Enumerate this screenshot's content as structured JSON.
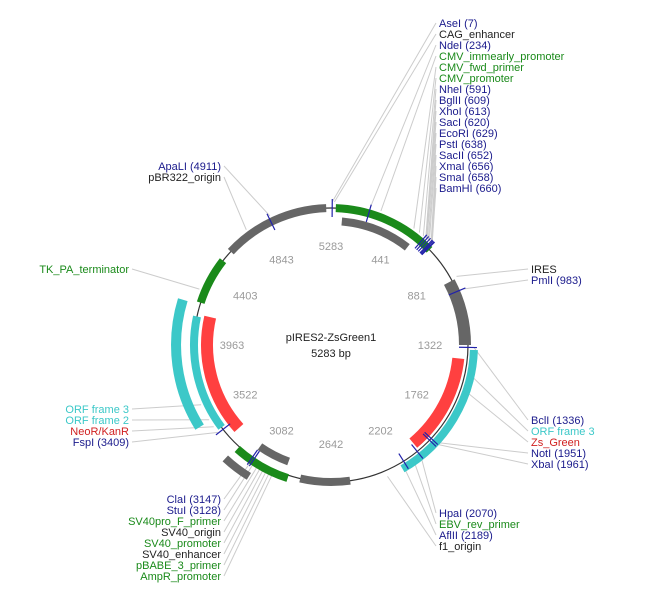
{
  "plasmid": {
    "name": "pIRES2-ZsGreen1",
    "size_label": "5283 bp",
    "total_bp": 5283
  },
  "colors": {
    "enzyme": "#1a1a8c",
    "green_feature": "#1a8a1a",
    "cyan_feature": "#3cc8c8",
    "red_feature": "#ff4040",
    "gray_feature": "#666666",
    "black_text": "#222222",
    "backbone": "#333333"
  },
  "ticks": [
    "5283",
    "441",
    "881",
    "1322",
    "1762",
    "2202",
    "2642",
    "3082",
    "3522",
    "3963",
    "4403",
    "4843"
  ],
  "labels_top_right": [
    {
      "text": "AseI (7)",
      "kind": "enzyme",
      "pos": 7
    },
    {
      "text": "CAG_enhancer",
      "kind": "misc",
      "pos": 20
    },
    {
      "text": "NdeI (234)",
      "kind": "enzyme",
      "pos": 234
    },
    {
      "text": "CMV_immearly_promoter",
      "kind": "feature",
      "pos": 300
    },
    {
      "text": "CMV_fwd_primer",
      "kind": "feature",
      "pos": 520
    },
    {
      "text": "CMV_promoter",
      "kind": "feature",
      "pos": 560
    },
    {
      "text": "NheI (591)",
      "kind": "enzyme",
      "pos": 591
    },
    {
      "text": "BglII (609)",
      "kind": "enzyme",
      "pos": 609
    },
    {
      "text": "XhoI (613)",
      "kind": "enzyme",
      "pos": 613
    },
    {
      "text": "SacI (620)",
      "kind": "enzyme",
      "pos": 620
    },
    {
      "text": "EcoRI (629)",
      "kind": "enzyme",
      "pos": 629
    },
    {
      "text": "PstI (638)",
      "kind": "enzyme",
      "pos": 638
    },
    {
      "text": "SacII (652)",
      "kind": "enzyme",
      "pos": 652
    },
    {
      "text": "XmaI (656)",
      "kind": "enzyme",
      "pos": 656
    },
    {
      "text": "SmaI (658)",
      "kind": "enzyme",
      "pos": 658
    },
    {
      "text": "BamHI (660)",
      "kind": "enzyme",
      "pos": 660
    }
  ],
  "labels_right_mid": [
    {
      "text": "IRES",
      "kind": "misc",
      "pos": 900
    },
    {
      "text": "PmlI (983)",
      "kind": "enzyme",
      "pos": 983
    }
  ],
  "labels_right_low": [
    {
      "text": "BclI (1336)",
      "kind": "enzyme",
      "pos": 1336
    },
    {
      "text": "ORF frame 3",
      "kind": "orf",
      "pos": 1500
    },
    {
      "text": "Zs_Green",
      "kind": "resist",
      "pos": 1600
    },
    {
      "text": "NotI (1951)",
      "kind": "enzyme",
      "pos": 1951
    },
    {
      "text": "XbaI (1961)",
      "kind": "enzyme",
      "pos": 1961
    }
  ],
  "labels_bottom_right": [
    {
      "text": "HpaI (2070)",
      "kind": "enzyme",
      "pos": 2070
    },
    {
      "text": "EBV_rev_primer",
      "kind": "feature",
      "pos": 2120
    },
    {
      "text": "AflII (2189)",
      "kind": "enzyme",
      "pos": 2189
    },
    {
      "text": "f1_origin",
      "kind": "misc",
      "pos": 2300
    }
  ],
  "labels_bottom_left": [
    {
      "text": "ClaI (3147)",
      "kind": "enzyme",
      "pos": 3147
    },
    {
      "text": "StuI (3128)",
      "kind": "enzyme",
      "pos": 3128
    },
    {
      "text": "SV40pro_F_primer",
      "kind": "feature",
      "pos": 3100
    },
    {
      "text": "SV40_origin",
      "kind": "misc",
      "pos": 3080
    },
    {
      "text": "SV40_promoter",
      "kind": "feature",
      "pos": 3060
    },
    {
      "text": "SV40_enhancer",
      "kind": "misc",
      "pos": 3040
    },
    {
      "text": "pBABE_3_primer",
      "kind": "feature",
      "pos": 3020
    },
    {
      "text": "AmpR_promoter",
      "kind": "feature",
      "pos": 3000
    }
  ],
  "labels_left_mid": [
    {
      "text": "ORF frame 3",
      "kind": "orf",
      "pos": 3600
    },
    {
      "text": "ORF frame 2",
      "kind": "orf",
      "pos": 3500
    },
    {
      "text": "NeoR/KanR",
      "kind": "resist",
      "pos": 3450
    },
    {
      "text": "FspI (3409)",
      "kind": "enzyme",
      "pos": 3409
    }
  ],
  "labels_left": [
    {
      "text": "TK_PA_terminator",
      "kind": "feature",
      "pos": 4300
    }
  ],
  "labels_top_left": [
    {
      "text": "ApaLI (4911)",
      "kind": "enzyme",
      "pos": 4911
    },
    {
      "text": "pBR322_origin",
      "kind": "misc",
      "pos": 4750
    }
  ]
}
